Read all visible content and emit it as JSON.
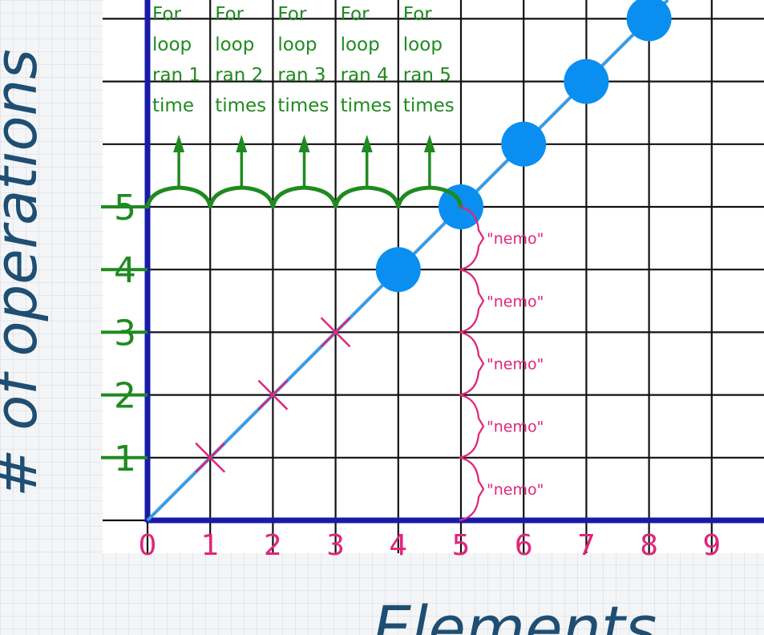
{
  "chart_data": {
    "type": "scatter",
    "title": "",
    "xlabel": "Elements",
    "ylabel": "# of operations",
    "xlim": [
      0,
      10
    ],
    "ylim": [
      0,
      8
    ],
    "x_ticks": [
      "0",
      "1",
      "2",
      "3",
      "4",
      "5",
      "6",
      "7",
      "8",
      "9"
    ],
    "y_ticks": [
      "1",
      "2",
      "3",
      "4",
      "5"
    ],
    "grid": true,
    "trend_line": {
      "from": [
        0,
        0
      ],
      "to": [
        8.3,
        8.3
      ]
    },
    "series": [
      {
        "marker": "x",
        "color": "#e0257a",
        "x": [
          1,
          2,
          3
        ],
        "y": [
          1,
          2,
          3
        ]
      },
      {
        "marker": "circle",
        "color": "#0a8ff0",
        "x": [
          4,
          5,
          6,
          7,
          8
        ],
        "y": [
          4,
          5,
          6,
          7,
          8
        ]
      }
    ],
    "annotations_top": [
      {
        "lines": [
          "For",
          "loop",
          "ran 1",
          "time"
        ]
      },
      {
        "lines": [
          "For",
          "loop",
          "ran 2",
          "times"
        ]
      },
      {
        "lines": [
          "For",
          "loop",
          "ran 3",
          "times"
        ]
      },
      {
        "lines": [
          "For",
          "loop",
          "ran 4",
          "times"
        ]
      },
      {
        "lines": [
          "For",
          "loop",
          "ran 5",
          "times"
        ]
      }
    ],
    "annotations_right": [
      "\"nemo\"",
      "\"nemo\"",
      "\"nemo\"",
      "\"nemo\"",
      "\"nemo\""
    ],
    "colors": {
      "axis": "#1a1aa8",
      "grid": "#111111",
      "trend": "#3a9be0",
      "annotation_green": "#1f8a1f",
      "annotation_pink": "#e0257a",
      "label_blue": "#1f4e73"
    }
  }
}
